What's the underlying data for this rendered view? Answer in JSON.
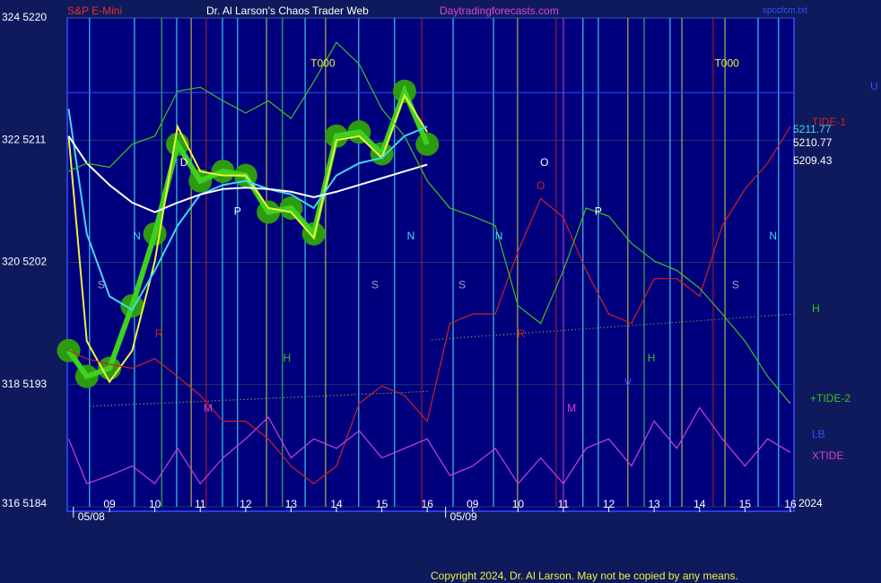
{
  "chart_data": {
    "type": "line",
    "title": "Dr. Al Larson's Chaos Trader Web",
    "subtitle": "S&P E-Mini",
    "site": "Daytradingforecasts.com",
    "file": "spccfcm.txt",
    "copyright": "Copyright 2024, Dr. Al Larson. May not be copied by any means.",
    "year": "2024",
    "ylim": [
      5184,
      5220
    ],
    "yticks": [
      {
        "value": 5220,
        "label": "324  5220"
      },
      {
        "value": 5211,
        "label": "322  5211"
      },
      {
        "value": 5202,
        "label": "320  5202"
      },
      {
        "value": 5193,
        "label": "318  5193"
      },
      {
        "value": 5184,
        "label": "316  5184"
      }
    ],
    "xlim": [
      8.07,
      24.08
    ],
    "xticks": [
      {
        "value": 9,
        "label": "09"
      },
      10,
      11,
      12,
      13,
      14,
      15,
      16,
      {
        "value": 17,
        "label": "09"
      },
      {
        "value": 18,
        "label": "10"
      },
      {
        "value": 19,
        "label": "11"
      },
      {
        "value": 20,
        "label": "12"
      },
      {
        "value": 21,
        "label": "13"
      },
      {
        "value": 22,
        "label": "14"
      },
      {
        "value": 23,
        "label": "15"
      },
      {
        "value": 24,
        "label": "16"
      }
    ],
    "dates": [
      {
        "x": 8.6,
        "label": "05/08"
      },
      {
        "x": 16.8,
        "label": "05/09"
      }
    ],
    "grid": true,
    "x": [
      8.1,
      8.5,
      9,
      9.5,
      10,
      10.5,
      11,
      11.5,
      12,
      12.5,
      13,
      13.5,
      14,
      14.5,
      15,
      15.5,
      16,
      16.5,
      17,
      17.5,
      18,
      18.5,
      19,
      19.5,
      20,
      20.5,
      21,
      21.5,
      22,
      22.5,
      23,
      23.5,
      24
    ],
    "series": [
      {
        "color": "#3cd21e",
        "style": "candles",
        "values": [
          5195.5,
          5193.6,
          5194.2,
          5198.8,
          5204.1,
          5210.7,
          5208,
          5208.7,
          5208.4,
          5205.7,
          5206,
          5204.1,
          5211.3,
          5211.6,
          5210,
          5214.6,
          5210.7,
          null,
          null,
          null,
          null,
          null,
          null,
          null,
          null,
          null,
          null,
          null,
          null,
          null,
          null,
          null,
          null
        ]
      },
      {
        "color": "#f0f040",
        "values": [
          5211.3,
          5196.2,
          5193.2,
          5195.5,
          5202.1,
          5212,
          5208.7,
          5208.4,
          5208.4,
          5206,
          5205.7,
          5203.8,
          5211,
          5211.3,
          5209.7,
          5214.3,
          5211.6,
          null,
          null,
          null,
          null,
          null,
          null,
          null,
          null,
          null,
          null,
          null,
          null,
          null,
          null,
          null,
          null
        ]
      },
      {
        "color": "#40d8f0",
        "values": [
          5213.3,
          5204.1,
          5199.5,
          5198.5,
          5201.4,
          5204.7,
          5207,
          5207.7,
          5208,
          5207.4,
          5207,
          5206,
          5208.4,
          5209.3,
          5209.7,
          5211.3,
          5212,
          null,
          null,
          null,
          null,
          null,
          null,
          null,
          null,
          null,
          null,
          null,
          null,
          null,
          null,
          null,
          null
        ]
      },
      {
        "color": "#ffffff",
        "values": [
          5211.3,
          5209.3,
          5207.7,
          5206.4,
          5205.7,
          5206.4,
          5207,
          5207.4,
          5207.5,
          5207.4,
          5207.2,
          5206.8,
          5207.2,
          5207.7,
          5208.2,
          5208.7,
          5209.2,
          null,
          null,
          null,
          null,
          null,
          null,
          null,
          null,
          null,
          null,
          null,
          null,
          null,
          null,
          null,
          null
        ]
      },
      {
        "name": "TIDE-1",
        "color": "#d02020",
        "values": [
          5195.5,
          5194.9,
          5194.5,
          5194.2,
          5194.9,
          5193.6,
          5192.2,
          5190.3,
          5190.3,
          5189,
          5187,
          5185.7,
          5187,
          5191.6,
          5192.9,
          5192.2,
          5190.3,
          5197.5,
          5198.2,
          5198.2,
          5202.8,
          5206.7,
          5205.3,
          5201.4,
          5198.2,
          5197.5,
          5200.8,
          5200.8,
          5199.5,
          5204.7,
          5207.4,
          5209.3,
          5212
        ]
      },
      {
        "name": "H",
        "color": "#40c020",
        "values": [
          5208.7,
          5209.3,
          5209,
          5210.7,
          5211.3,
          5214.6,
          5214.9,
          5213.9,
          5213,
          5213.9,
          5212.6,
          5215.3,
          5218.2,
          5216.6,
          5213.3,
          5211.3,
          5208,
          5206,
          5205.4,
          5204.7,
          5198.8,
          5197.5,
          5201.4,
          5206,
          5205.4,
          5203.4,
          5202.1,
          5201.4,
          5200.1,
          5198.2,
          5196.2,
          5193.6,
          5191.6
        ]
      },
      {
        "name": "XTIDE",
        "color": "#d040d0",
        "values": [
          5189,
          5185.7,
          5186.3,
          5187,
          5185.7,
          5188.3,
          5185.7,
          5187.6,
          5189,
          5190.6,
          5187.6,
          5189,
          5188.3,
          5189.6,
          5187.6,
          5188.3,
          5189,
          5186.3,
          5187,
          5188.3,
          5185.7,
          5187.6,
          5185.7,
          5188.3,
          5189,
          5187,
          5190.3,
          5188.3,
          5191.3,
          5189,
          5187,
          5189,
          5188
        ]
      }
    ],
    "trend_lines": [
      {
        "color": "#a0d040",
        "x": [
          8.56,
          16
        ],
        "values": [
          5191.4,
          5192.5
        ]
      },
      {
        "color": "#60d030",
        "x": [
          16.1,
          24.08
        ],
        "values": [
          5196.3,
          5198.2
        ]
      }
    ],
    "hlines": [
      {
        "color": "#3050ff",
        "value": 5214.5
      }
    ],
    "last_values": [
      {
        "value": 5211.77,
        "color": "#40d8f0"
      },
      {
        "value": 5210.77,
        "color": "#ffffff"
      },
      {
        "value": 5209.43,
        "color": "#ffffff"
      }
    ],
    "side_labels": [
      {
        "text": "+TIDE-2",
        "color": "#40c020"
      },
      {
        "text": "LB",
        "color": "#3050ff"
      },
      {
        "text": "U",
        "color": "#3050ff"
      }
    ],
    "vlines": [
      {
        "x": 8.56,
        "color": "#40d8f0"
      },
      {
        "x": 9.55,
        "color": "#40d8f0"
      },
      {
        "x": 10.15,
        "color": "#40c040"
      },
      {
        "x": 10.48,
        "color": "#40d8f0"
      },
      {
        "x": 10.8,
        "color": "#c0c040"
      },
      {
        "x": 11.13,
        "color": "#a02020"
      },
      {
        "x": 11.49,
        "color": "#40d8f0"
      },
      {
        "x": 11.82,
        "color": "#40d8f0"
      },
      {
        "x": 12.46,
        "color": "#c0c040"
      },
      {
        "x": 12.81,
        "color": "#40c040"
      },
      {
        "x": 13.31,
        "color": "#40d8f0"
      },
      {
        "x": 13.76,
        "color": "#c0c040"
      },
      {
        "x": 14.49,
        "color": "#40d8f0"
      },
      {
        "x": 15.28,
        "color": "#40d8f0"
      },
      {
        "x": 15.88,
        "color": "#a02020"
      },
      {
        "x": 16.57,
        "color": "#40d8f0"
      },
      {
        "x": 17.46,
        "color": "#40d8f0"
      },
      {
        "x": 17.99,
        "color": "#c0c040"
      },
      {
        "x": 18.84,
        "color": "#a02020"
      },
      {
        "x": 19.0,
        "color": "#c040c0"
      },
      {
        "x": 19.43,
        "color": "#40d8f0"
      },
      {
        "x": 19.77,
        "color": "#40d8f0"
      },
      {
        "x": 20.42,
        "color": "#c0c040"
      },
      {
        "x": 20.78,
        "color": "#40c040"
      },
      {
        "x": 21.35,
        "color": "#40d8f0"
      },
      {
        "x": 21.61,
        "color": "#c0c040"
      },
      {
        "x": 22.3,
        "color": "#a02020"
      },
      {
        "x": 22.56,
        "color": "#c0c040"
      },
      {
        "x": 23.29,
        "color": "#40d8f0"
      },
      {
        "x": 23.74,
        "color": "#40d8f0"
      }
    ],
    "annotations": [
      {
        "text": "T000",
        "x": 13.7,
        "y": 5216.6,
        "color": "#f0f040"
      },
      {
        "text": "T000",
        "x": 22.6,
        "y": 5216.6,
        "color": "#f0f040"
      },
      {
        "text": "S",
        "x": 8.82,
        "y": 5200.3,
        "color": "#a0a0d0"
      },
      {
        "text": "N",
        "x": 9.6,
        "y": 5203.9,
        "color": "#40d8f0"
      },
      {
        "text": "D",
        "x": 10.64,
        "y": 5209.3,
        "color": "#ffffff"
      },
      {
        "text": "P",
        "x": 11.82,
        "y": 5205.7,
        "color": "#ffffff"
      },
      {
        "text": "S",
        "x": 14.85,
        "y": 5200.3,
        "color": "#a0a0d0"
      },
      {
        "text": "N",
        "x": 15.64,
        "y": 5203.9,
        "color": "#40d8f0"
      },
      {
        "text": "S",
        "x": 16.77,
        "y": 5200.3,
        "color": "#a0a0d0"
      },
      {
        "text": "N",
        "x": 17.58,
        "y": 5203.9,
        "color": "#40d8f0"
      },
      {
        "text": "O",
        "x": 18.58,
        "y": 5209.3,
        "color": "#ffffff"
      },
      {
        "text": "P",
        "x": 19.77,
        "y": 5205.7,
        "color": "#ffffff"
      },
      {
        "text": "S",
        "x": 22.79,
        "y": 5200.3,
        "color": "#a0a0d0"
      },
      {
        "text": "N",
        "x": 23.62,
        "y": 5203.9,
        "color": "#40d8f0"
      },
      {
        "text": "R",
        "x": 10.09,
        "y": 5196.7,
        "color": "#d02020"
      },
      {
        "text": "M",
        "x": 11.17,
        "y": 5191.2,
        "color": "#d040d0"
      },
      {
        "text": "H",
        "x": 12.91,
        "y": 5194.9,
        "color": "#40c020"
      },
      {
        "text": "R",
        "x": 18.07,
        "y": 5196.7,
        "color": "#d02020"
      },
      {
        "text": "M",
        "x": 19.18,
        "y": 5191.2,
        "color": "#d040d0"
      },
      {
        "text": "H",
        "x": 20.94,
        "y": 5194.9,
        "color": "#40c020"
      },
      {
        "text": "V",
        "x": 20.42,
        "y": 5193.1,
        "color": "#3050ff"
      },
      {
        "text": "O",
        "x": 18.5,
        "y": 5207.6,
        "color": "#d02020"
      }
    ]
  }
}
